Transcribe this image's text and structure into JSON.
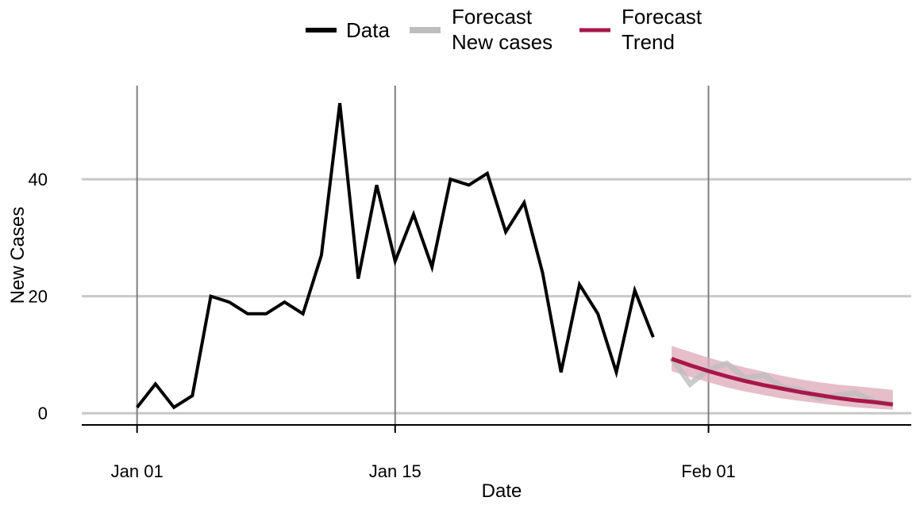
{
  "chart_data": {
    "type": "line",
    "xlabel": "Date",
    "ylabel": "New Cases",
    "x_ticks": [
      {
        "date": "2021-01-01",
        "label": "Jan 01"
      },
      {
        "date": "2021-01-15",
        "label": "Jan 15"
      },
      {
        "date": "2021-02-01",
        "label": "Feb 01"
      }
    ],
    "y_ticks": [
      0,
      20,
      40
    ],
    "xlim": [
      "2020-12-29",
      "2021-02-12"
    ],
    "ylim": [
      -2,
      56
    ],
    "grid": true,
    "legend_position": "top",
    "legend": [
      {
        "label": "Data",
        "color": "#000000"
      },
      {
        "label_lines": [
          "Forecast",
          "New cases"
        ],
        "color": "#bebebe"
      },
      {
        "label_lines": [
          "Forecast",
          "Trend"
        ],
        "color": "#a8174a"
      }
    ],
    "series": [
      {
        "name": "Data",
        "color": "#000000",
        "x": [
          "2021-01-01",
          "2021-01-02",
          "2021-01-03",
          "2021-01-04",
          "2021-01-05",
          "2021-01-06",
          "2021-01-07",
          "2021-01-08",
          "2021-01-09",
          "2021-01-10",
          "2021-01-11",
          "2021-01-12",
          "2021-01-13",
          "2021-01-14",
          "2021-01-15",
          "2021-01-16",
          "2021-01-17",
          "2021-01-18",
          "2021-01-19",
          "2021-01-20",
          "2021-01-21",
          "2021-01-22",
          "2021-01-23",
          "2021-01-24",
          "2021-01-25",
          "2021-01-26",
          "2021-01-27",
          "2021-01-28",
          "2021-01-29"
        ],
        "y": [
          1,
          5,
          1,
          3,
          20,
          19,
          17,
          17,
          19,
          17,
          27,
          53,
          23,
          39,
          26,
          34,
          25,
          40,
          39,
          41,
          31,
          36,
          24,
          7,
          22,
          17,
          7,
          21,
          13
        ]
      },
      {
        "name": "Forecast New cases",
        "color": "#bebebe",
        "x": [
          "2021-01-30",
          "2021-01-31",
          "2021-02-01",
          "2021-02-02",
          "2021-02-03",
          "2021-02-04",
          "2021-02-05",
          "2021-02-06",
          "2021-02-07",
          "2021-02-08",
          "2021-02-09",
          "2021-02-10",
          "2021-02-11"
        ],
        "y": [
          9.5,
          5.0,
          7.5,
          8.5,
          6.0,
          6.5,
          4.5,
          4.0,
          2.5,
          3.0,
          3.5,
          2.0,
          1.5
        ]
      },
      {
        "name": "Forecast Trend",
        "color": "#a8174a",
        "band_color": "#dca8b8",
        "x": [
          "2021-01-30",
          "2021-01-31",
          "2021-02-01",
          "2021-02-02",
          "2021-02-03",
          "2021-02-04",
          "2021-02-05",
          "2021-02-06",
          "2021-02-07",
          "2021-02-08",
          "2021-02-09",
          "2021-02-10",
          "2021-02-11"
        ],
        "y": [
          9.3,
          8.2,
          7.2,
          6.3,
          5.5,
          4.8,
          4.2,
          3.6,
          3.1,
          2.6,
          2.2,
          1.9,
          1.5
        ],
        "lower": [
          7.2,
          6.2,
          5.3,
          4.4,
          3.7,
          3.1,
          2.5,
          2.1,
          1.7,
          1.3,
          1.0,
          0.8,
          0.6
        ],
        "upper": [
          11.5,
          10.5,
          9.5,
          8.6,
          7.8,
          7.1,
          6.4,
          5.8,
          5.3,
          4.9,
          4.6,
          4.3,
          4.0
        ]
      }
    ]
  }
}
